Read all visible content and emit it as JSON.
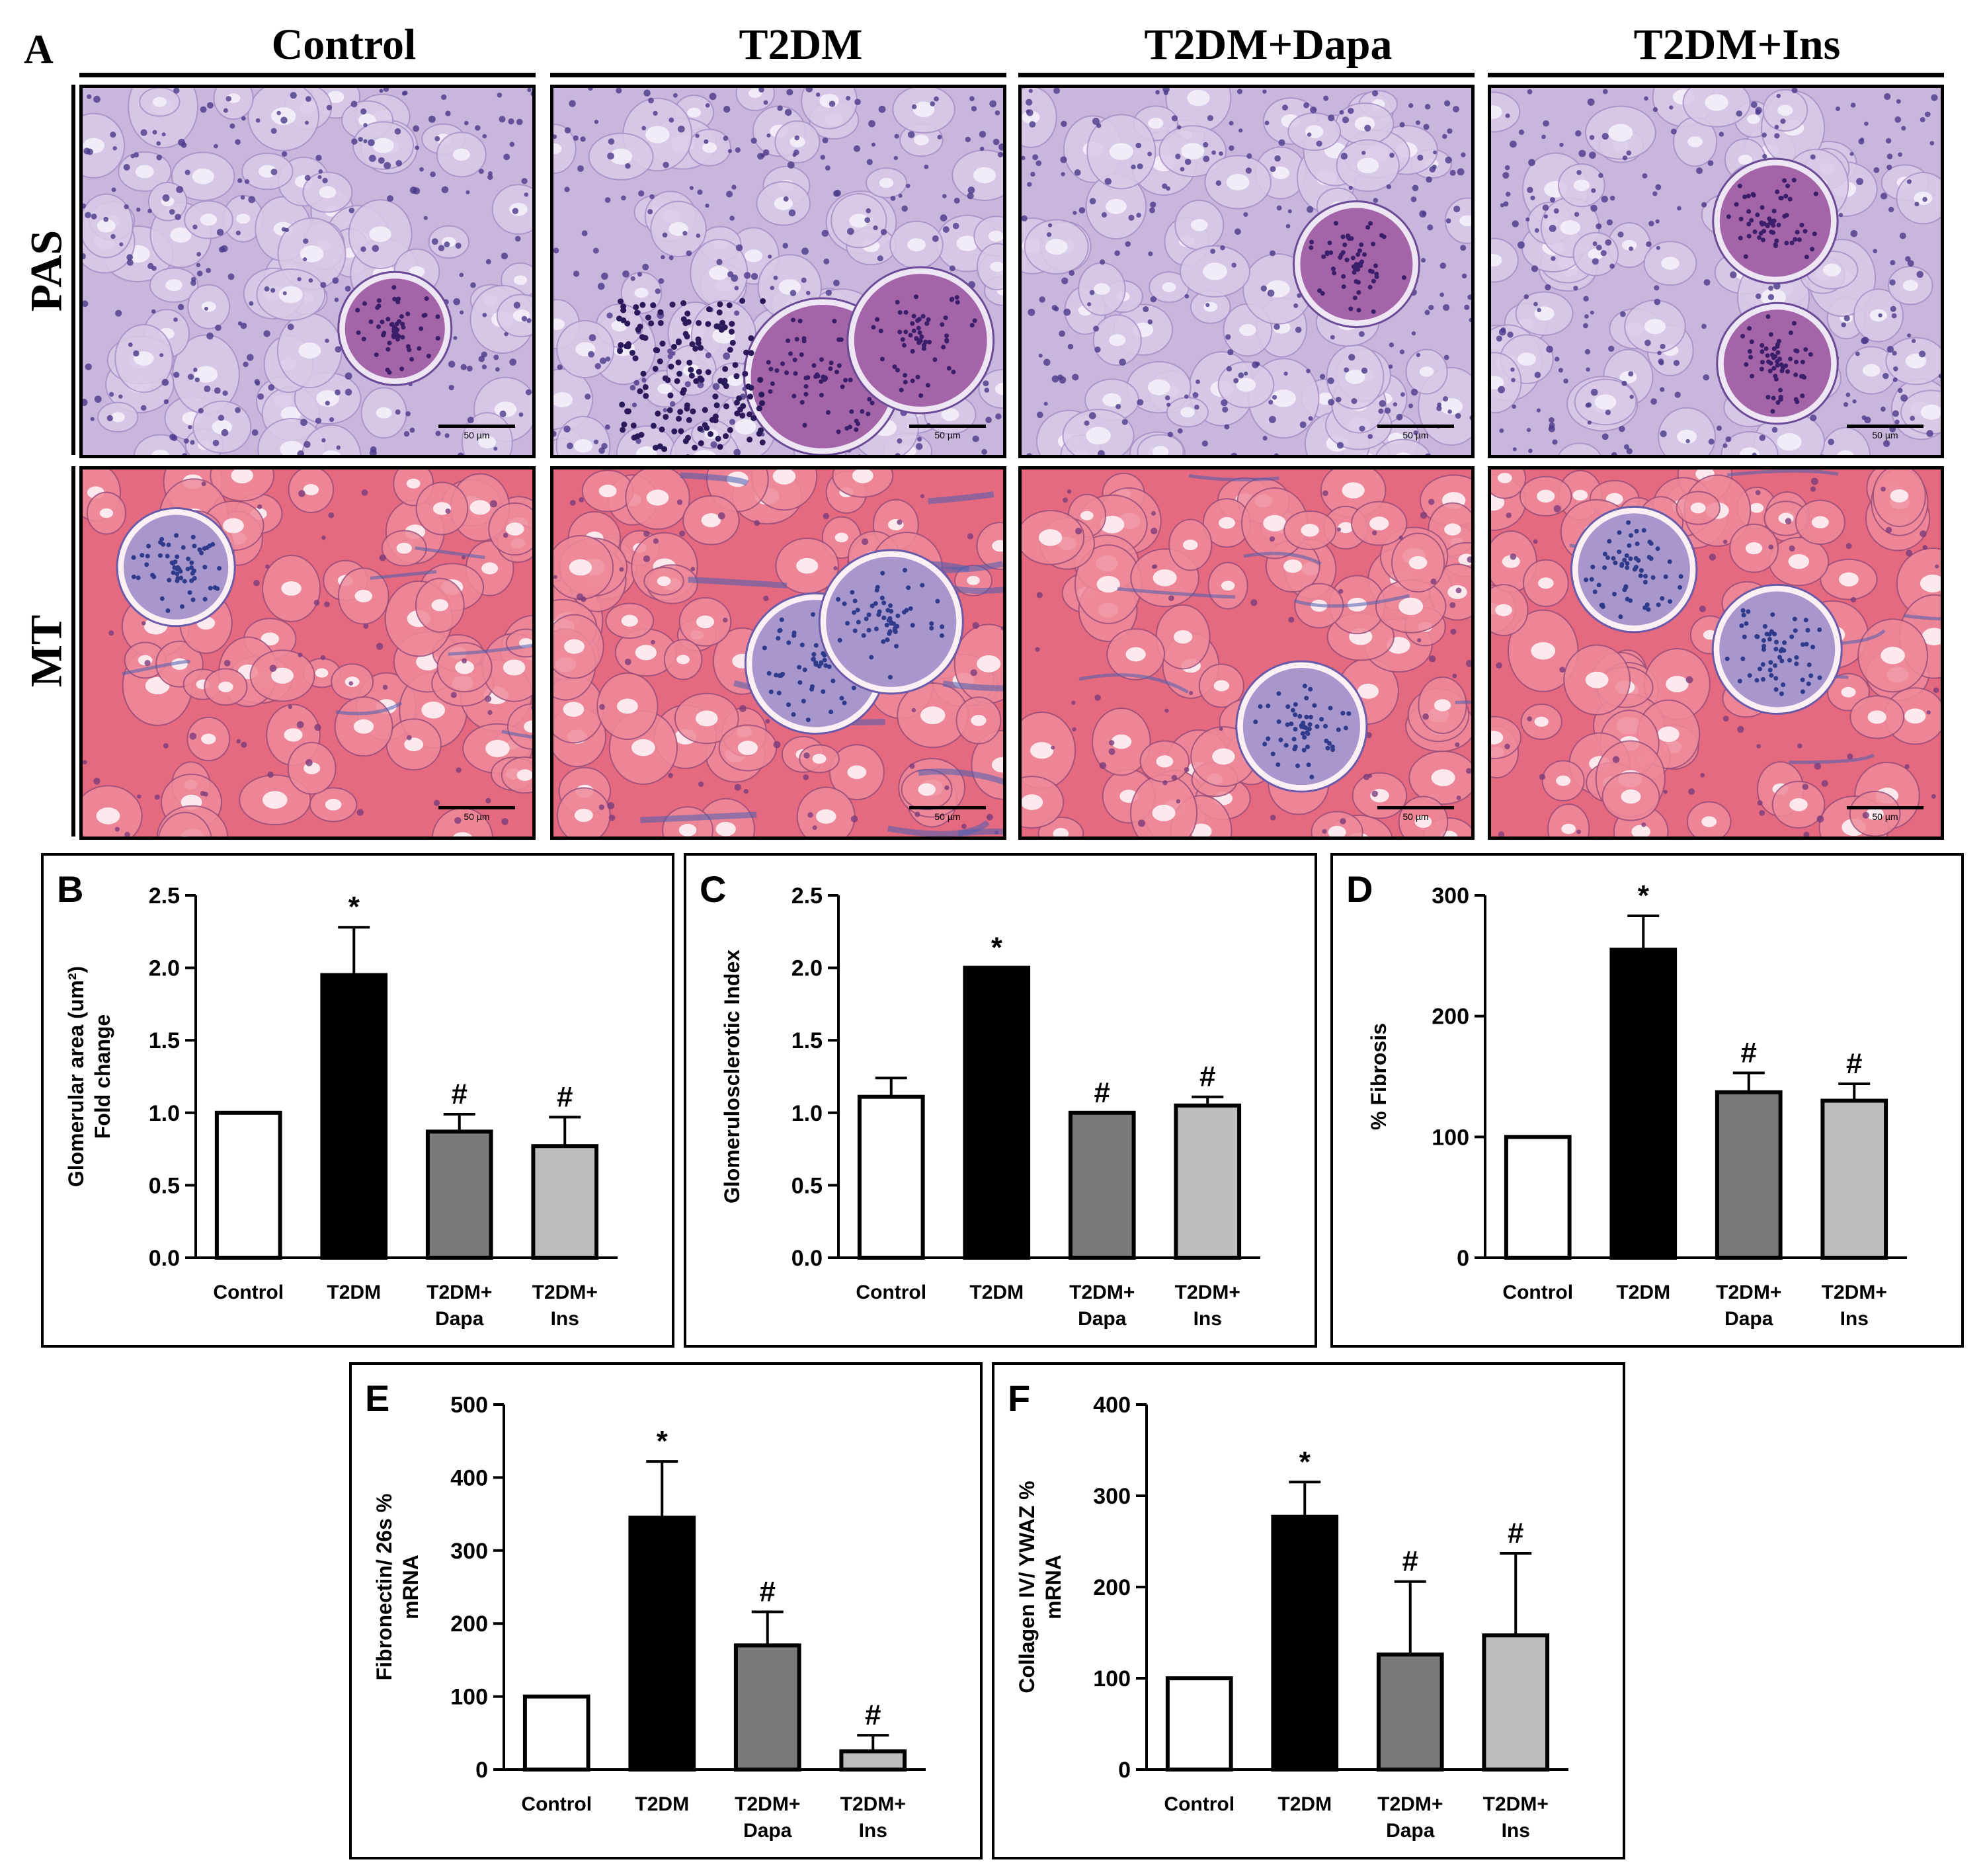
{
  "figure": {
    "panel_a_letter": "A",
    "columns": [
      "Control",
      "T2DM",
      "T2DM+Dapa",
      "T2DM+Ins"
    ],
    "rows": [
      "PAS",
      "MT"
    ],
    "scale_bar_label": "50 µm",
    "colors": {
      "pas_background": "#c8b6dc",
      "pas_nuclei": "#4a3a8a",
      "pas_glomerulus": "#8a3a8e",
      "mt_background": "#e56a80",
      "mt_tubule_lumen": "#fbe9ee",
      "mt_collagen": "#4a5fb0",
      "bar_control": "#ffffff",
      "bar_t2dm": "#000000",
      "bar_dapa": "#7a7a7a",
      "bar_ins": "#bdbdbd"
    }
  },
  "chart_data": [
    {
      "panel": "B",
      "type": "bar",
      "categories": [
        "Control",
        "T2DM",
        "T2DM+\nDapa",
        "T2DM+\nIns"
      ],
      "values": [
        1.0,
        1.95,
        0.87,
        0.77
      ],
      "errors": [
        0.0,
        0.33,
        0.12,
        0.2
      ],
      "markers": [
        "",
        "*",
        "#",
        "#"
      ],
      "ylabel_lines": [
        "Glomerular area (um²)",
        "Fold change"
      ],
      "ylim": [
        0,
        2.5
      ],
      "yticks": [
        "0.0",
        "0.5",
        "1.0",
        "1.5",
        "2.0",
        "2.5"
      ]
    },
    {
      "panel": "C",
      "type": "bar",
      "categories": [
        "Control",
        "T2DM",
        "T2DM+\nDapa",
        "T2DM+\nIns"
      ],
      "values": [
        1.11,
        2.0,
        1.0,
        1.05
      ],
      "errors": [
        0.13,
        0.0,
        0.0,
        0.06
      ],
      "markers": [
        "",
        "*",
        "#",
        "#"
      ],
      "ylabel_lines": [
        "Glomerulosclerotic Index"
      ],
      "ylim": [
        0,
        2.5
      ],
      "yticks": [
        "0.0",
        "0.5",
        "1.0",
        "1.5",
        "2.0",
        "2.5"
      ]
    },
    {
      "panel": "D",
      "type": "bar",
      "categories": [
        "Control",
        "T2DM",
        "T2DM+\nDapa",
        "T2DM+\nIns"
      ],
      "values": [
        100,
        255,
        137,
        130
      ],
      "errors": [
        0,
        28,
        16,
        14
      ],
      "markers": [
        "",
        "*",
        "#",
        "#"
      ],
      "ylabel_lines": [
        "% Fibrosis"
      ],
      "ylim": [
        0,
        300
      ],
      "yticks": [
        "0",
        "100",
        "200",
        "300"
      ]
    },
    {
      "panel": "E",
      "type": "bar",
      "categories": [
        "Control",
        "T2DM",
        "T2DM+\nDapa",
        "T2DM+\nIns"
      ],
      "values": [
        100,
        345,
        170,
        25
      ],
      "errors": [
        0,
        77,
        46,
        22
      ],
      "markers": [
        "",
        "*",
        "#",
        "#"
      ],
      "ylabel_lines": [
        "Fibronectin/ 26s %",
        "mRNA"
      ],
      "ylim": [
        0,
        500
      ],
      "yticks": [
        "0",
        "100",
        "200",
        "300",
        "400",
        "500"
      ]
    },
    {
      "panel": "F",
      "type": "bar",
      "categories": [
        "Control",
        "T2DM",
        "T2DM+\nDapa",
        "T2DM+\nIns"
      ],
      "values": [
        100,
        277,
        126,
        147
      ],
      "errors": [
        0,
        38,
        80,
        90
      ],
      "markers": [
        "",
        "*",
        "#",
        "#"
      ],
      "ylabel_lines": [
        "Collagen IV/ YWAZ %",
        "mRNA"
      ],
      "ylim": [
        0,
        400
      ],
      "yticks": [
        "0",
        "100",
        "200",
        "300",
        "400"
      ]
    }
  ]
}
